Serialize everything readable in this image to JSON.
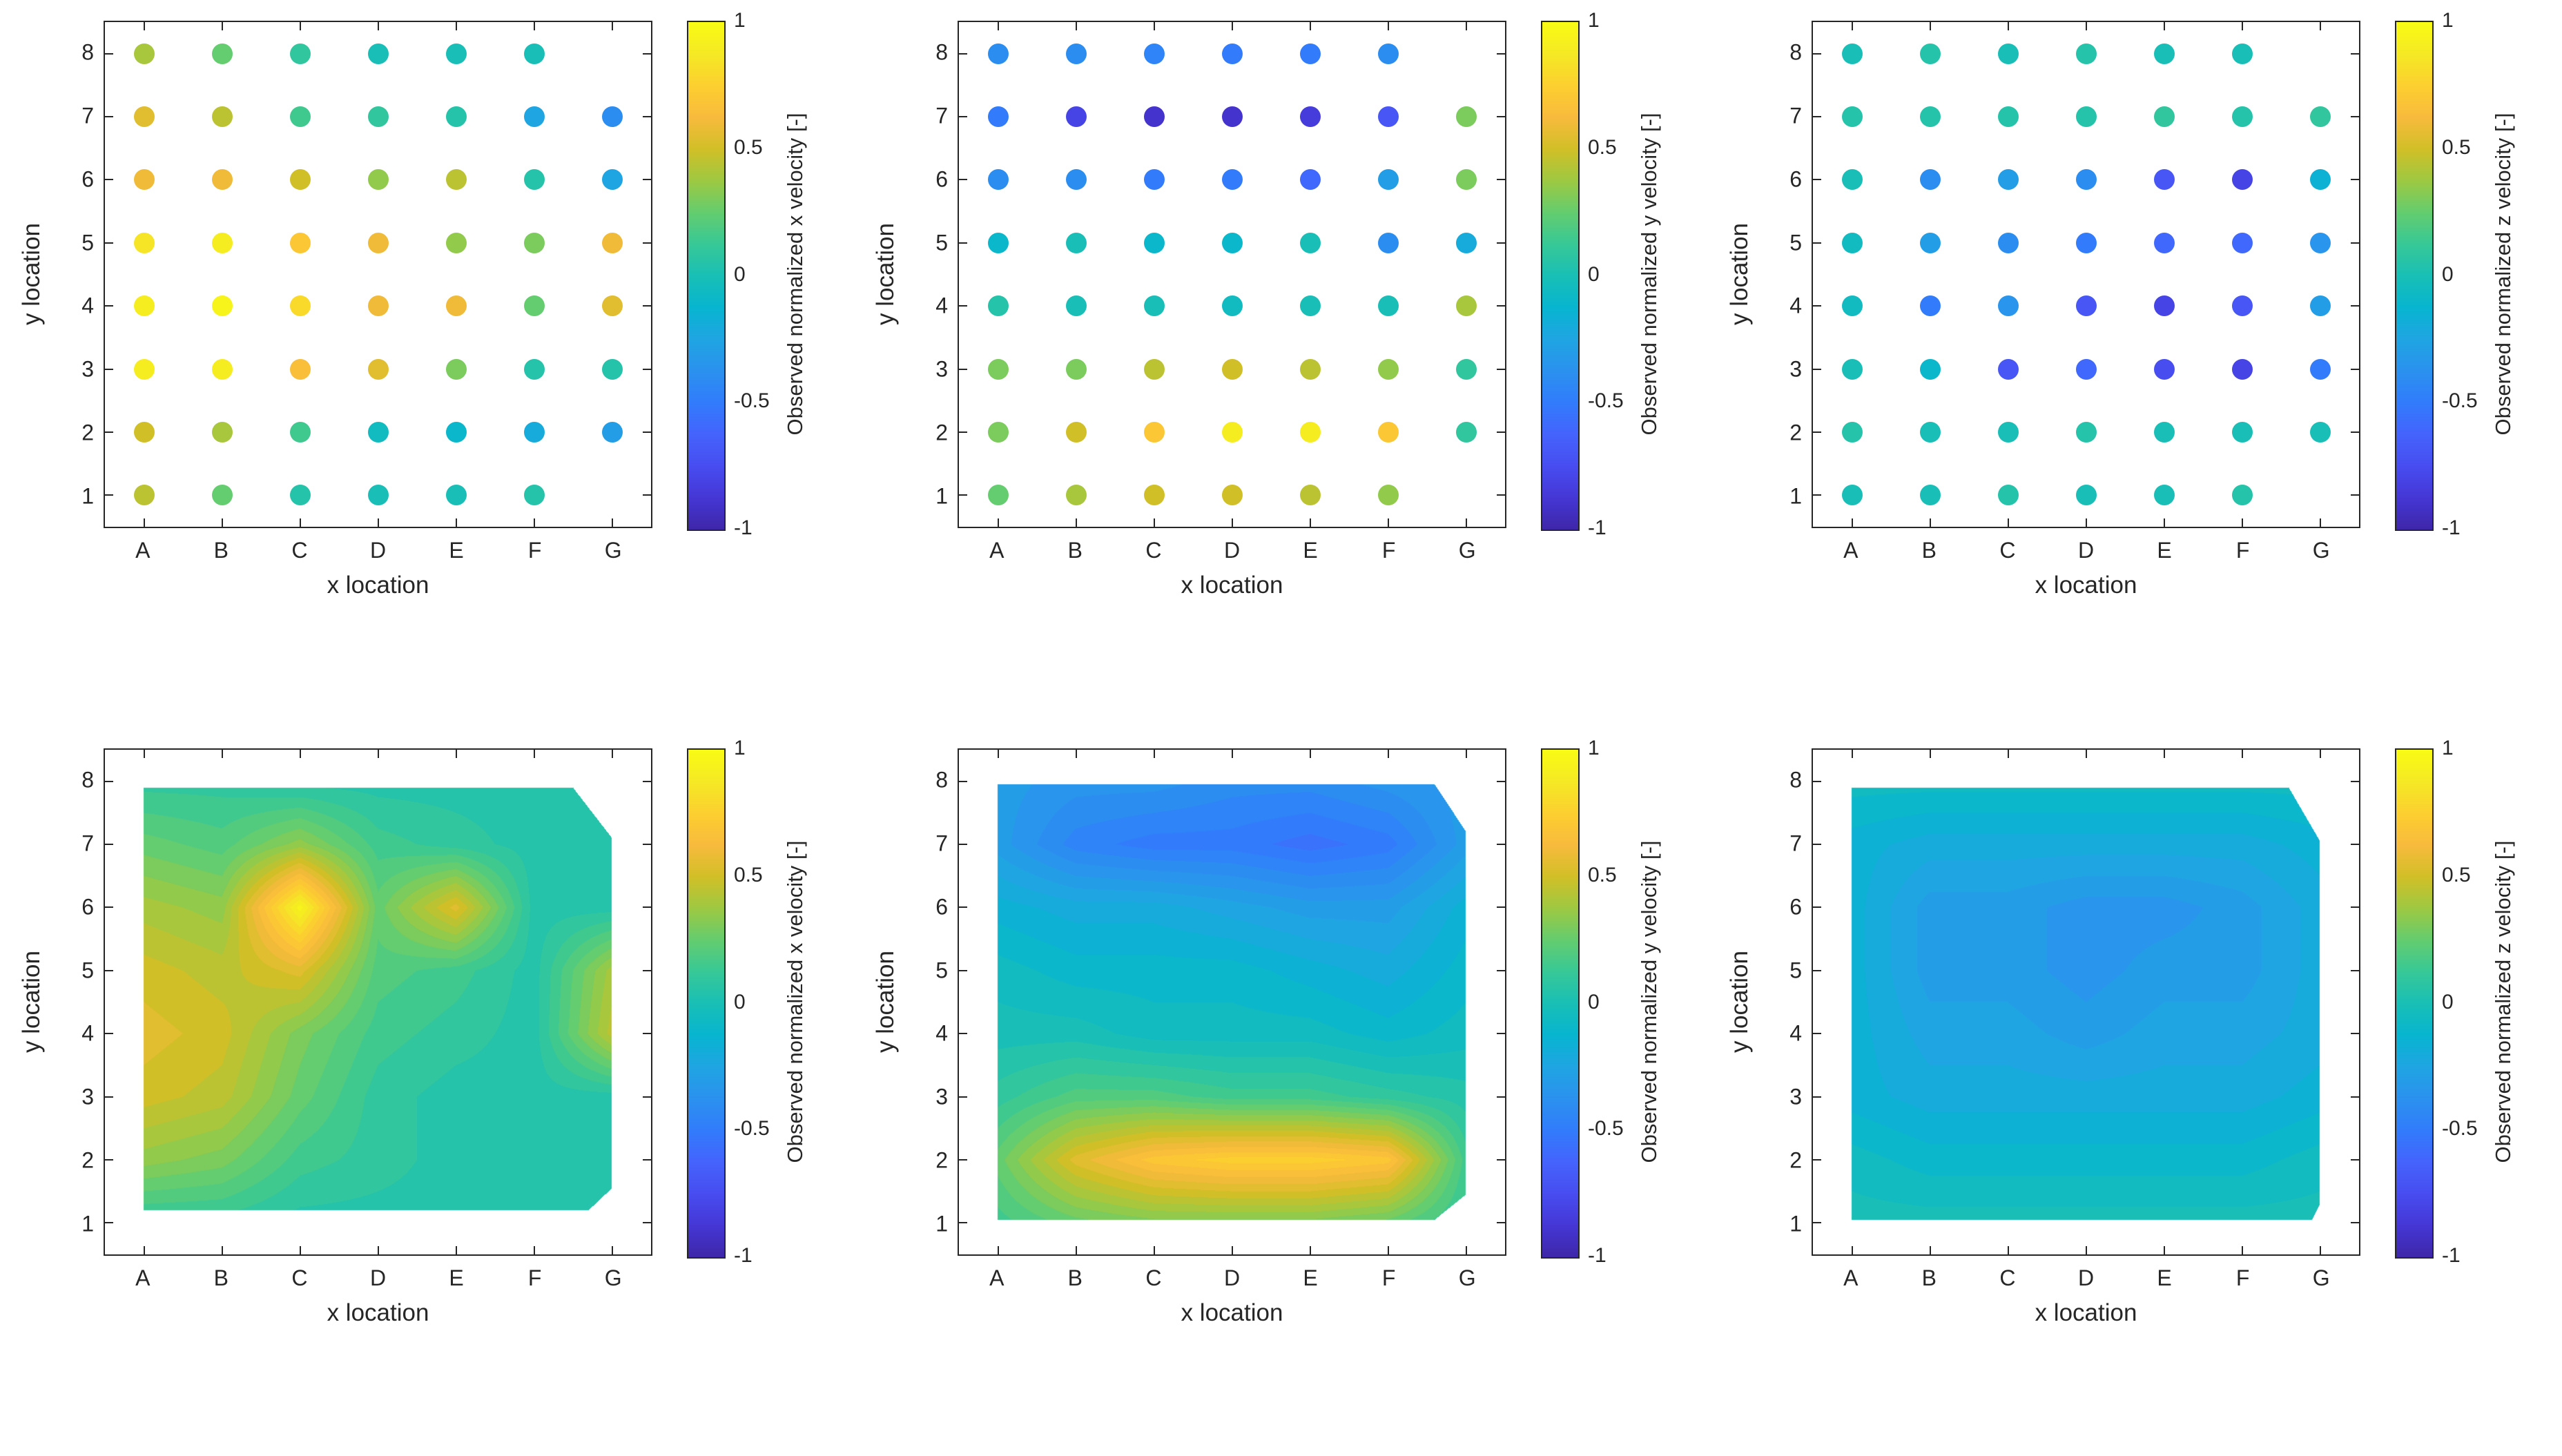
{
  "figure": {
    "background": "#ffffff",
    "text_color": "#262626",
    "xlabel": "x location",
    "ylabel": "y location",
    "x_ticks": [
      "A",
      "B",
      "C",
      "D",
      "E",
      "F",
      "G"
    ],
    "y_ticks": [
      "1",
      "2",
      "3",
      "4",
      "5",
      "6",
      "7",
      "8"
    ],
    "xlim": [
      0.5,
      7.5
    ],
    "ylim": [
      0.5,
      8.5
    ],
    "colorbar": {
      "colormap": "parula",
      "range": [
        -1,
        1
      ],
      "ticks": [
        {
          "label": "1",
          "value": 1
        },
        {
          "label": "0.5",
          "value": 0.5
        },
        {
          "label": "0",
          "value": 0
        },
        {
          "label": "-0.5",
          "value": -0.5
        },
        {
          "label": "-1",
          "value": -1
        }
      ]
    }
  },
  "chart_data": [
    {
      "type": "scatter",
      "position": "top-left",
      "colorbar_label": "Observed normalized x velocity [-]",
      "x_categories": [
        "A",
        "B",
        "C",
        "D",
        "E",
        "F",
        "G"
      ],
      "y_values": [
        1,
        2,
        3,
        4,
        5,
        6,
        7,
        8
      ],
      "values_note": "rows are y=1 (bottom) to y=8 (top), columns A..G, null = no marker",
      "values": [
        [
          0.45,
          0.25,
          0.05,
          0.0,
          0.0,
          0.05,
          null
        ],
        [
          0.5,
          0.4,
          0.15,
          -0.05,
          -0.1,
          -0.2,
          -0.3
        ],
        [
          0.9,
          0.9,
          0.65,
          0.55,
          0.3,
          0.05,
          0.05
        ],
        [
          0.9,
          0.95,
          0.8,
          0.6,
          0.6,
          0.25,
          0.55
        ],
        [
          0.85,
          0.9,
          0.7,
          0.6,
          0.35,
          0.3,
          0.6
        ],
        [
          0.6,
          0.6,
          0.5,
          0.35,
          0.45,
          0.05,
          -0.25
        ],
        [
          0.55,
          0.45,
          0.15,
          0.1,
          0.05,
          -0.25,
          -0.4
        ],
        [
          0.4,
          0.25,
          0.1,
          0.0,
          0.0,
          0.0,
          null
        ]
      ]
    },
    {
      "type": "scatter",
      "position": "top-middle",
      "colorbar_label": "Observed normalized y velocity [-]",
      "x_categories": [
        "A",
        "B",
        "C",
        "D",
        "E",
        "F",
        "G"
      ],
      "y_values": [
        1,
        2,
        3,
        4,
        5,
        6,
        7,
        8
      ],
      "values": [
        [
          0.25,
          0.4,
          0.5,
          0.5,
          0.45,
          0.35,
          null
        ],
        [
          0.3,
          0.5,
          0.7,
          0.9,
          0.9,
          0.7,
          0.1
        ],
        [
          0.3,
          0.3,
          0.45,
          0.5,
          0.45,
          0.35,
          0.1
        ],
        [
          0.05,
          0.0,
          0.0,
          -0.05,
          0.0,
          0.0,
          0.4
        ],
        [
          -0.1,
          0.0,
          -0.1,
          -0.1,
          0.0,
          -0.4,
          -0.2
        ],
        [
          -0.4,
          -0.4,
          -0.5,
          -0.5,
          -0.6,
          -0.3,
          0.3
        ],
        [
          -0.5,
          -0.8,
          -0.9,
          -0.9,
          -0.85,
          -0.7,
          0.3
        ],
        [
          -0.4,
          -0.4,
          -0.45,
          -0.5,
          -0.5,
          -0.4,
          null
        ]
      ]
    },
    {
      "type": "scatter",
      "position": "top-right",
      "colorbar_label": "Observed normalized z velocity [-]",
      "x_categories": [
        "A",
        "B",
        "C",
        "D",
        "E",
        "F",
        "G"
      ],
      "y_values": [
        1,
        2,
        3,
        4,
        5,
        6,
        7,
        8
      ],
      "values": [
        [
          0.0,
          0.0,
          0.05,
          0.0,
          0.0,
          0.05,
          null
        ],
        [
          0.05,
          0.0,
          0.0,
          0.05,
          0.0,
          0.0,
          0.0
        ],
        [
          0.0,
          -0.1,
          -0.7,
          -0.6,
          -0.75,
          -0.8,
          -0.5
        ],
        [
          -0.05,
          -0.5,
          -0.35,
          -0.7,
          -0.8,
          -0.7,
          -0.3
        ],
        [
          -0.05,
          -0.3,
          -0.4,
          -0.5,
          -0.6,
          -0.6,
          -0.35
        ],
        [
          0.0,
          -0.4,
          -0.3,
          -0.4,
          -0.7,
          -0.8,
          -0.15
        ],
        [
          0.05,
          0.05,
          0.05,
          0.05,
          0.1,
          0.05,
          0.1
        ],
        [
          0.0,
          0.05,
          0.0,
          0.05,
          0.0,
          0.0,
          null
        ]
      ]
    },
    {
      "type": "contour",
      "position": "bottom-left",
      "colorbar_label": "Observed normalized x velocity [-]",
      "x_categories": [
        "A",
        "B",
        "C",
        "D",
        "E",
        "F",
        "G"
      ],
      "y_values": [
        1,
        2,
        3,
        4,
        5,
        6,
        7,
        8
      ],
      "boundary": [
        [
          1,
          1.2
        ],
        [
          6.7,
          1.2
        ],
        [
          7,
          1.55
        ],
        [
          7,
          7.1
        ],
        [
          6.5,
          7.9
        ],
        [
          1,
          7.9
        ]
      ],
      "grid_values": [
        [
          0.1,
          0.1,
          0.05,
          0.05,
          0.05,
          0.05,
          0.05
        ],
        [
          0.35,
          0.3,
          0.15,
          0.1,
          0.05,
          0.05,
          0.05
        ],
        [
          0.5,
          0.45,
          0.25,
          0.1,
          0.05,
          0.05,
          0.05
        ],
        [
          0.55,
          0.5,
          0.3,
          0.15,
          0.1,
          0.05,
          0.45
        ],
        [
          0.5,
          0.45,
          0.55,
          0.2,
          0.15,
          0.05,
          0.4
        ],
        [
          0.4,
          0.35,
          0.95,
          0.25,
          0.55,
          0.05,
          0.05
        ],
        [
          0.25,
          0.2,
          0.35,
          0.15,
          0.1,
          0.05,
          0.05
        ],
        [
          0.1,
          0.1,
          0.05,
          0.05,
          0.05,
          0.05,
          0.05
        ]
      ]
    },
    {
      "type": "contour",
      "position": "bottom-middle",
      "colorbar_label": "Observed normalized y velocity [-]",
      "x_categories": [
        "A",
        "B",
        "C",
        "D",
        "E",
        "F",
        "G"
      ],
      "y_values": [
        1,
        2,
        3,
        4,
        5,
        6,
        7,
        8
      ],
      "boundary": [
        [
          1,
          1.05
        ],
        [
          6.6,
          1.05
        ],
        [
          7,
          1.45
        ],
        [
          7,
          7.2
        ],
        [
          6.6,
          7.95
        ],
        [
          1,
          7.95
        ]
      ],
      "grid_values": [
        [
          0.15,
          0.25,
          0.3,
          0.3,
          0.3,
          0.25,
          0.1
        ],
        [
          0.25,
          0.55,
          0.7,
          0.75,
          0.75,
          0.7,
          0.15
        ],
        [
          0.1,
          0.2,
          0.2,
          0.15,
          0.15,
          0.1,
          0.05
        ],
        [
          0.0,
          0.0,
          -0.05,
          -0.05,
          -0.05,
          -0.1,
          -0.05
        ],
        [
          -0.05,
          -0.1,
          -0.1,
          -0.1,
          -0.15,
          -0.2,
          -0.1
        ],
        [
          -0.15,
          -0.2,
          -0.2,
          -0.25,
          -0.3,
          -0.3,
          -0.15
        ],
        [
          -0.3,
          -0.45,
          -0.5,
          -0.5,
          -0.55,
          -0.5,
          -0.3
        ],
        [
          -0.3,
          -0.35,
          -0.35,
          -0.4,
          -0.4,
          -0.35,
          -0.3
        ]
      ]
    },
    {
      "type": "contour",
      "position": "bottom-right",
      "colorbar_label": "Observed normalized z velocity [-]",
      "x_categories": [
        "A",
        "B",
        "C",
        "D",
        "E",
        "F",
        "G"
      ],
      "y_values": [
        1,
        2,
        3,
        4,
        5,
        6,
        7,
        8
      ],
      "boundary": [
        [
          1,
          1.05
        ],
        [
          6.9,
          1.05
        ],
        [
          7,
          1.3
        ],
        [
          7,
          7.05
        ],
        [
          6.6,
          7.9
        ],
        [
          1,
          7.9
        ]
      ],
      "grid_values": [
        [
          0.0,
          0.0,
          0.0,
          0.0,
          0.0,
          0.0,
          0.0
        ],
        [
          -0.05,
          -0.1,
          -0.1,
          -0.1,
          -0.1,
          -0.1,
          -0.05
        ],
        [
          -0.15,
          -0.2,
          -0.2,
          -0.2,
          -0.2,
          -0.2,
          -0.15
        ],
        [
          -0.15,
          -0.25,
          -0.25,
          -0.3,
          -0.25,
          -0.25,
          -0.2
        ],
        [
          -0.15,
          -0.3,
          -0.3,
          -0.35,
          -0.3,
          -0.3,
          -0.2
        ],
        [
          -0.15,
          -0.3,
          -0.3,
          -0.35,
          -0.35,
          -0.3,
          -0.2
        ],
        [
          -0.15,
          -0.2,
          -0.2,
          -0.2,
          -0.2,
          -0.2,
          -0.15
        ],
        [
          -0.05,
          -0.05,
          -0.05,
          -0.05,
          -0.05,
          -0.05,
          -0.05
        ]
      ]
    }
  ]
}
